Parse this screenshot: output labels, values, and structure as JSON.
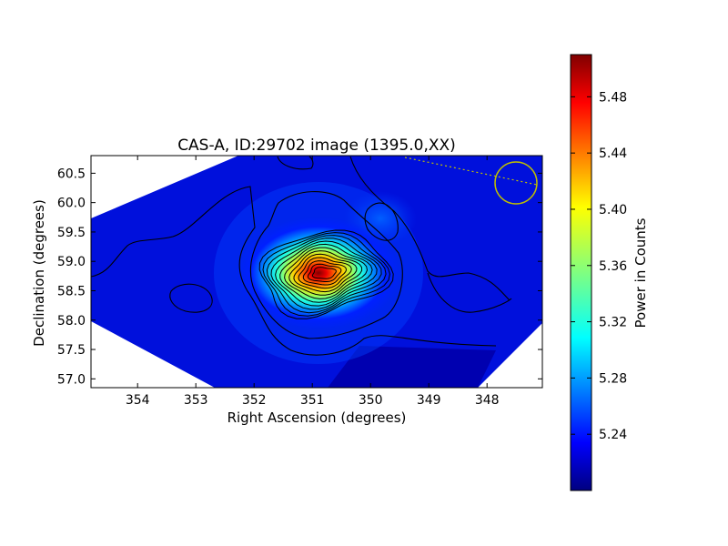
{
  "chart_data": {
    "type": "heatmap",
    "title": "CAS-A, ID:29702 image (1395.0,XX)",
    "xlabel": "Right Ascension (degrees)",
    "ylabel": "Declination (degrees)",
    "xlim": [
      354.8,
      347.05
    ],
    "ylim": [
      56.85,
      60.8
    ],
    "xticks": [
      354,
      353,
      352,
      351,
      350,
      349,
      348
    ],
    "yticks": [
      57.0,
      57.5,
      58.0,
      58.5,
      59.0,
      59.5,
      60.0,
      60.5
    ],
    "ytick_labels": [
      "57.0",
      "57.5",
      "58.0",
      "58.5",
      "59.0",
      "59.5",
      "60.0",
      "60.5"
    ],
    "colorbar": {
      "label": "Power in Counts",
      "range": [
        5.2,
        5.51
      ],
      "ticks": [
        5.24,
        5.28,
        5.32,
        5.36,
        5.4,
        5.44,
        5.48
      ],
      "tick_labels": [
        "5.24",
        "5.28",
        "5.32",
        "5.36",
        "5.40",
        "5.44",
        "5.48"
      ],
      "colormap": "jet"
    },
    "peak": {
      "ra": 350.8,
      "dec": 58.8,
      "value": 5.5
    },
    "secondary_peak": {
      "ra": 349.6,
      "dec": 59.8
    },
    "beam_circle": {
      "ra": 347.5,
      "dec": 60.35,
      "color": "#bfbf00"
    },
    "colors": {
      "background_field": "#0000d8",
      "contour": "#000000"
    }
  }
}
